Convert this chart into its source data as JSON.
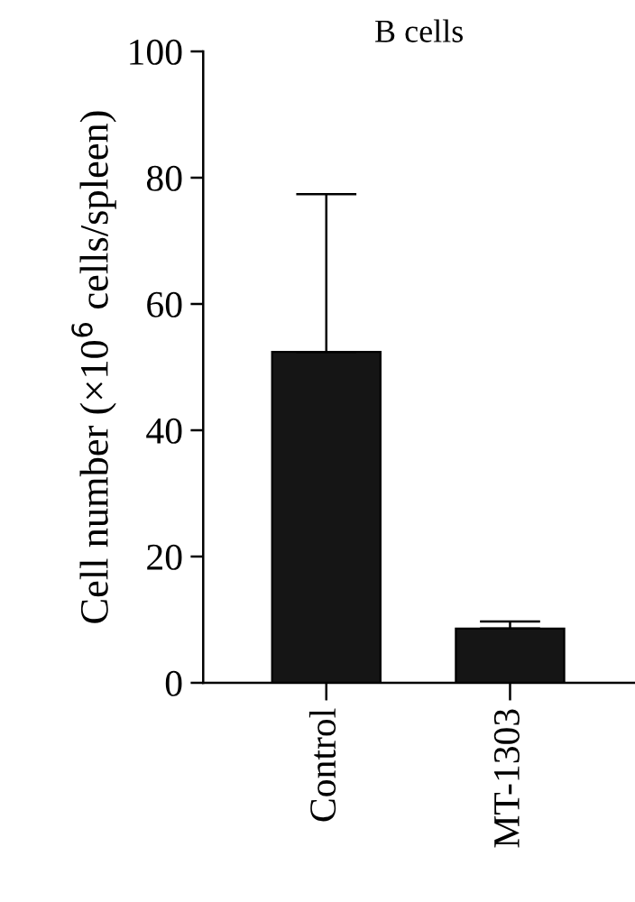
{
  "chart_data": {
    "type": "bar",
    "title": "B cells",
    "ylabel": "Cell number (×10$^{6}$ cells/spleen)",
    "categories": [
      "Control",
      "MT-1303"
    ],
    "series": [
      {
        "color": "#151515",
        "values": [
          52.4,
          8.6
        ],
        "errors": [
          [
            52.4,
            77.4
          ],
          [
            8.6,
            9.7
          ]
        ]
      }
    ],
    "ylim": [
      0,
      100
    ],
    "yticks": [
      0,
      20,
      40,
      60,
      80,
      100
    ],
    "grid": false
  }
}
